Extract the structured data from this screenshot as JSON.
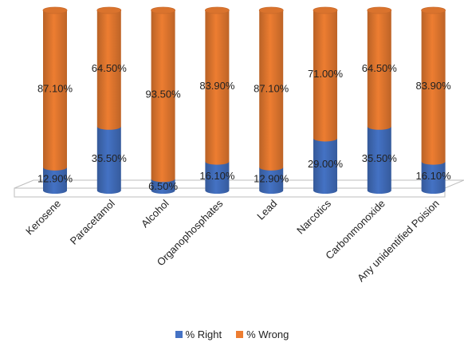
{
  "chart_data": {
    "type": "bar",
    "stacked": true,
    "style": "3d-cylinder",
    "categories": [
      "Kerosene",
      "Paracetamol",
      "Alcohol",
      "Organophosphates",
      "Lead",
      "Narcotics",
      "Carbonmonoxide",
      "Any unidentified Poision"
    ],
    "series": [
      {
        "name": "% Right",
        "color": "#4472C4",
        "values": [
          12.9,
          35.5,
          6.5,
          16.1,
          12.9,
          29.0,
          35.5,
          16.1
        ],
        "labels": [
          "12.90%",
          "35.50%",
          "6.50%",
          "16.10%",
          "12.90%",
          "29.00%",
          "35.50%",
          "16.10%"
        ]
      },
      {
        "name": "% Wrong",
        "color": "#ED7D31",
        "values": [
          87.1,
          64.5,
          93.5,
          83.9,
          87.1,
          71.0,
          64.5,
          83.9
        ],
        "labels": [
          "87.10%",
          "64.50%",
          "93.50%",
          "83.90%",
          "87.10%",
          "71.00%",
          "64.50%",
          "83.90%"
        ]
      }
    ],
    "ylim": [
      0,
      100
    ],
    "grid": false,
    "legend_position": "bottom"
  }
}
